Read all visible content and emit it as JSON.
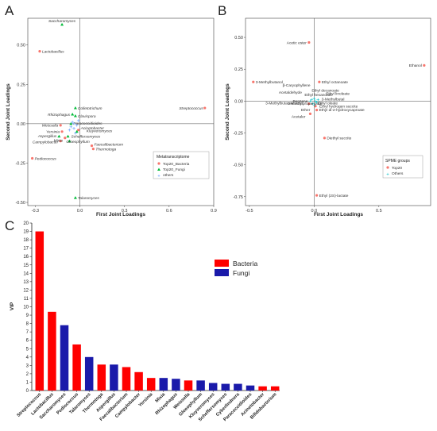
{
  "colors": {
    "bacteria": "#f8766d",
    "fungi": "#00ba38",
    "others": "#619cff",
    "bar_bacteria": "#ff0000",
    "bar_fungi": "#1a1aaa"
  },
  "panels": {
    "a": {
      "letter": "A"
    },
    "b": {
      "letter": "B"
    },
    "c": {
      "letter": "C"
    }
  },
  "chart_data": [
    {
      "type": "scatter",
      "panel": "A",
      "xlabel": "First Joint Loadings",
      "ylabel": "Second Joint Loadings",
      "xlim": [
        -0.35,
        0.9
      ],
      "ylim": [
        -0.52,
        0.67
      ],
      "xticks": [
        "-0.3",
        "0.0",
        "0.3",
        "0.6",
        "0.9"
      ],
      "xtick_values": [
        -0.3,
        0.0,
        0.3,
        0.6,
        0.9
      ],
      "yticks": [
        "0.50",
        "0.25",
        "0.00",
        "-0.25",
        "-0.50"
      ],
      "ytick_values": [
        0.5,
        0.25,
        0.0,
        -0.25,
        -0.5
      ],
      "legend": {
        "title": "Metatranscriptome",
        "position": "bottom-right",
        "entries": [
          "Top20_Bacteria",
          "Top20_Fungi",
          "others"
        ]
      },
      "series": [
        {
          "name": "Top20_Bacteria",
          "points": [
            {
              "label": "Lactobacillus",
              "x": -0.27,
              "y": 0.46
            },
            {
              "label": "Streptococcus",
              "x": 0.84,
              "y": 0.1
            },
            {
              "label": "Pediococcus",
              "x": -0.32,
              "y": -0.22
            },
            {
              "label": "Weissella",
              "x": -0.13,
              "y": -0.01
            },
            {
              "label": "Yersinia",
              "x": -0.12,
              "y": -0.05
            },
            {
              "label": "Campylobacter",
              "x": -0.13,
              "y": -0.11
            },
            {
              "label": "Faecalibacterium",
              "x": 0.08,
              "y": -0.14
            },
            {
              "label": "Thermotoga",
              "x": 0.09,
              "y": -0.16
            },
            {
              "label": "Acinetobacter",
              "x": -0.01,
              "y": -0.04
            },
            {
              "label": "Mixia",
              "x": -0.1,
              "y": -0.09
            }
          ]
        },
        {
          "name": "Top20_Fungi",
          "points": [
            {
              "label": "Saccharomyces",
              "x": -0.12,
              "y": 0.63
            },
            {
              "label": "Colletotrichum",
              "x": -0.03,
              "y": 0.1
            },
            {
              "label": "Clavispora",
              "x": -0.03,
              "y": 0.05
            },
            {
              "label": "Rhizophagus",
              "x": -0.05,
              "y": 0.06
            },
            {
              "label": "Paracoccidioides",
              "x": -0.06,
              "y": 0.0
            },
            {
              "label": "Kluyveromyces",
              "x": -0.02,
              "y": -0.05
            },
            {
              "label": "Scheffersomyces",
              "x": -0.08,
              "y": -0.08
            },
            {
              "label": "Aspergillus",
              "x": -0.14,
              "y": -0.08
            },
            {
              "label": "Gloeophyllum",
              "x": -0.07,
              "y": -0.11
            },
            {
              "label": "Talaromyces",
              "x": -0.03,
              "y": -0.47
            }
          ]
        },
        {
          "name": "others",
          "points": [
            {
              "x": -0.06,
              "y": -0.02
            },
            {
              "x": -0.04,
              "y": -0.03
            },
            {
              "x": -0.02,
              "y": -0.01
            },
            {
              "x": -0.05,
              "y": 0.01
            },
            {
              "x": -0.03,
              "y": -0.06
            },
            {
              "x": -0.07,
              "y": -0.04
            },
            {
              "x": -0.01,
              "y": 0.02
            },
            {
              "x": -0.04,
              "y": 0.0
            }
          ]
        }
      ]
    },
    {
      "type": "scatter",
      "panel": "B",
      "xlabel": "First Joint Loadings",
      "ylabel": "Second Joint Loadings",
      "xlim": [
        -0.53,
        0.9
      ],
      "ylim": [
        -0.82,
        0.65
      ],
      "xticks": [
        "-0.5",
        "0.0",
        "0.5"
      ],
      "xtick_values": [
        -0.5,
        0.0,
        0.5
      ],
      "yticks": [
        "0.50",
        "0.25",
        "0.00",
        "-0.25",
        "-0.50",
        "-0.75"
      ],
      "ytick_values": [
        0.5,
        0.25,
        0.0,
        -0.25,
        -0.5,
        -0.75
      ],
      "legend": {
        "title": "SPME groups",
        "position": "bottom-right",
        "entries": [
          "Top20",
          "Others"
        ]
      },
      "series": [
        {
          "name": "Top20",
          "points": [
            {
              "label": "Acetic ester",
              "x": -0.04,
              "y": 0.46
            },
            {
              "label": "Ethanol",
              "x": 0.85,
              "y": 0.28
            },
            {
              "label": "3-Methylbutanol",
              "x": -0.47,
              "y": 0.15
            },
            {
              "label": "Ethyl octanoate",
              "x": 0.04,
              "y": 0.15
            },
            {
              "label": "Diethyl succite",
              "x": 0.08,
              "y": -0.29
            },
            {
              "label": "Ethyl (2S)-lactate",
              "x": 0.02,
              "y": -0.74
            },
            {
              "label": "Ethyl di-2-hydroxycaproate",
              "x": 0.02,
              "y": -0.07
            },
            {
              "label": "Ethyl hydrogen succite",
              "x": 0.01,
              "y": -0.04
            },
            {
              "label": "Acetaler",
              "x": -0.03,
              "y": -0.1
            },
            {
              "label": "3-Methylbutanoic acid",
              "x": -0.04,
              "y": -0.02
            }
          ]
        },
        {
          "name": "Others",
          "points": [
            {
              "x": 0.0,
              "y": 0.02
            },
            {
              "x": 0.01,
              "y": 0.0
            },
            {
              "x": -0.02,
              "y": 0.01
            },
            {
              "x": 0.02,
              "y": -0.01
            },
            {
              "x": -0.01,
              "y": -0.02
            },
            {
              "x": 0.03,
              "y": 0.01
            },
            {
              "x": -0.03,
              "y": 0.0
            },
            {
              "x": 0.0,
              "y": -0.03
            }
          ]
        }
      ],
      "labels_without_marker": [
        {
          "label": "Ethyl decanoate",
          "x": 0.0,
          "y": 0.03
        },
        {
          "label": "β-Caryophyllene",
          "x": -0.06,
          "y": 0.04
        },
        {
          "label": "Ethyl linoleate",
          "x": 0.03,
          "y": 0.03
        },
        {
          "label": "Acetaldehyde",
          "x": -0.04,
          "y": 0.02
        },
        {
          "label": "Ethyl hexanoate",
          "x": 0.0,
          "y": 0.02
        },
        {
          "label": "3-Methylbutal",
          "x": 0.02,
          "y": 0.01
        },
        {
          "label": "Benzene",
          "x": -0.03,
          "y": 0.0
        },
        {
          "label": "Ethyl oleate",
          "x": 0.01,
          "y": 0.0
        },
        {
          "label": "2-Methylpropanoate",
          "x": -0.03,
          "y": -0.02
        },
        {
          "label": "Ether",
          "x": -0.04,
          "y": -0.06
        }
      ]
    },
    {
      "type": "bar",
      "panel": "C",
      "xlabel": "",
      "ylabel": "VIP",
      "ylim": [
        0,
        20
      ],
      "yticks": [
        0,
        1,
        2,
        3,
        4,
        5,
        6,
        7,
        8,
        9,
        10,
        11,
        12,
        13,
        14,
        15,
        16,
        17,
        18,
        19,
        20
      ],
      "legend": {
        "position": "top-right",
        "entries": [
          "Bacteria",
          "Fungi"
        ]
      },
      "categories": [
        "Streptococcus",
        "Lactobacillus",
        "Saccharomyces",
        "Pediococcus",
        "Talaromyces",
        "Thermotoga",
        "Aspergillus",
        "Faecalibacterium",
        "Campylobacter",
        "Yersinia",
        "Mixia",
        "Rhizophagus",
        "Weissella",
        "Gloeophyllum",
        "Kluyveromyces",
        "Scheffersomyces",
        "Cyberlindnera",
        "Paracoccidioides",
        "Acinetobacter",
        "Bifidobacterium"
      ],
      "values": [
        19.0,
        9.4,
        7.8,
        5.5,
        4.0,
        3.1,
        3.1,
        2.8,
        2.2,
        1.5,
        1.5,
        1.4,
        1.2,
        1.2,
        0.9,
        0.8,
        0.8,
        0.6,
        0.5,
        0.5
      ],
      "groups": [
        "Bacteria",
        "Bacteria",
        "Fungi",
        "Bacteria",
        "Fungi",
        "Bacteria",
        "Fungi",
        "Bacteria",
        "Bacteria",
        "Bacteria",
        "Fungi",
        "Fungi",
        "Bacteria",
        "Fungi",
        "Fungi",
        "Fungi",
        "Fungi",
        "Fungi",
        "Bacteria",
        "Bacteria"
      ]
    }
  ]
}
